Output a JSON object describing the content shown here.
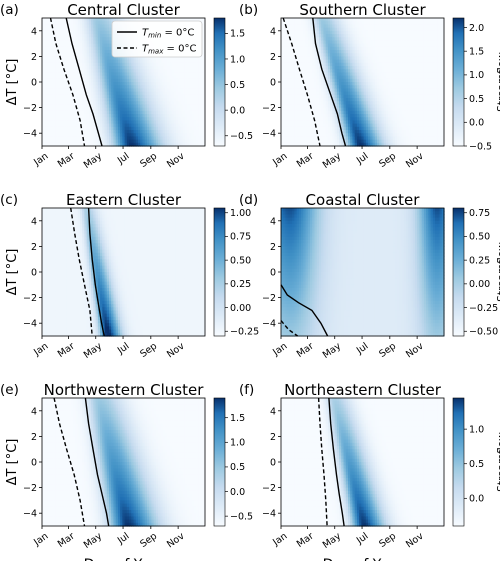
{
  "chart_data": [
    {
      "panel": "(a)",
      "title": "Central Cluster",
      "type": "heatmap",
      "ylabel": "ΔT [°C]",
      "xlabel": "",
      "xticks": [
        "Jan",
        "Mar",
        "May",
        "Jul",
        "Sep",
        "Nov"
      ],
      "xlim": [
        1,
        365
      ],
      "ylim": [
        -5,
        5
      ],
      "yticks": [
        "4",
        "2",
        "0",
        "−2",
        "−4"
      ],
      "colorbar": {
        "ticks": [
          "1.5",
          "1.0",
          "0.5",
          "0.0",
          "−0.5"
        ],
        "tick_values": [
          1.5,
          1.0,
          0.5,
          0.0,
          -0.5
        ],
        "range": [
          -0.7,
          1.8
        ],
        "label": ""
      },
      "peak": {
        "x_at_dT5": 125,
        "x_at_dTm5": 200,
        "width": 32,
        "smin": 0.45,
        "smax": 1.0
      },
      "second_peak": null,
      "background": 0.0,
      "legend": [
        "T_min = 0°C",
        "T_max = 0°C"
      ],
      "tmin_line": {
        "x": [
          55,
          68,
          84,
          100,
          115,
          127,
          135
        ],
        "y": [
          5,
          3,
          1,
          -1,
          -2.5,
          -4,
          -5
        ]
      },
      "tmax_line": {
        "x": [
          20,
          32,
          50,
          70,
          86,
          96
        ],
        "y": [
          5,
          3,
          1,
          -1,
          -3,
          -5
        ]
      }
    },
    {
      "panel": "(b)",
      "title": "Southern Cluster",
      "type": "heatmap",
      "ylabel": "",
      "xlabel": "",
      "xticks": [
        "Jan",
        "Mar",
        "May",
        "Jul",
        "Sep",
        "Nov"
      ],
      "xlim": [
        1,
        365
      ],
      "ylim": [
        -5,
        5
      ],
      "yticks": [
        "4",
        "2",
        "0",
        "−2",
        "−4"
      ],
      "colorbar": {
        "ticks": [
          "2.0",
          "1.5",
          "1.0",
          "0.5",
          "0.0",
          "−0.5"
        ],
        "tick_values": [
          2.0,
          1.5,
          1.0,
          0.5,
          0.0,
          -0.5
        ],
        "range": [
          -0.5,
          2.2
        ],
        "label": "Streamflow"
      },
      "peak": {
        "x_at_dT5": 92,
        "x_at_dTm5": 178,
        "width": 24,
        "smin": 0.45,
        "smax": 1.0
      },
      "second_peak": null,
      "background": 0.0,
      "tmin_line": {
        "x": [
          72,
          78,
          92,
          112,
          127,
          137,
          145
        ],
        "y": [
          5,
          3,
          1,
          -1,
          -2.5,
          -4,
          -5
        ]
      },
      "tmax_line": {
        "x": [
          6,
          25,
          42,
          60,
          76,
          88
        ],
        "y": [
          5,
          3,
          1,
          -1,
          -3,
          -5
        ]
      }
    },
    {
      "panel": "(c)",
      "title": "Eastern Cluster",
      "type": "heatmap",
      "ylabel": "ΔT [°C]",
      "xlabel": "",
      "xticks": [
        "Jan",
        "Mar",
        "May",
        "Jul",
        "Sep",
        "Nov"
      ],
      "xlim": [
        1,
        365
      ],
      "ylim": [
        -5,
        5
      ],
      "yticks": [
        "4",
        "2",
        "0",
        "−2",
        "−4"
      ],
      "colorbar": {
        "ticks": [
          "1.00",
          "0.75",
          "0.50",
          "0.25",
          "0.00",
          "−0.25"
        ],
        "tick_values": [
          1.0,
          0.75,
          0.5,
          0.25,
          0.0,
          -0.25
        ],
        "range": [
          -0.3,
          1.05
        ],
        "label": ""
      },
      "peak": {
        "x_at_dT5": 100,
        "x_at_dTm5": 148,
        "width": 14,
        "smin": 0.35,
        "smax": 1.0
      },
      "second_peak": null,
      "background": 0.05,
      "tmin_line": {
        "x": [
          105,
          108,
          113,
          120,
          127,
          134,
          140
        ],
        "y": [
          5,
          3,
          1,
          -1,
          -2.5,
          -4,
          -5
        ]
      },
      "tmax_line": {
        "x": [
          65,
          74,
          84,
          96,
          108,
          113
        ],
        "y": [
          5,
          3,
          1,
          -1,
          -3,
          -5
        ]
      }
    },
    {
      "panel": "(d)",
      "title": "Coastal Cluster",
      "type": "heatmap",
      "ylabel": "",
      "xlabel": "",
      "xticks": [
        "Jan",
        "Mar",
        "May",
        "Jul",
        "Sep",
        "Nov"
      ],
      "xlim": [
        1,
        365
      ],
      "ylim": [
        -5,
        5
      ],
      "yticks": [
        "4",
        "2",
        "0",
        "−2",
        "−4"
      ],
      "colorbar": {
        "ticks": [
          "0.75",
          "0.50",
          "0.25",
          "0.00",
          "−0.25",
          "−0.50"
        ],
        "tick_values": [
          0.75,
          0.5,
          0.25,
          0.0,
          -0.25,
          -0.5
        ],
        "range": [
          -0.55,
          0.8
        ],
        "label": "Streamflow"
      },
      "peak": null,
      "second_peak": null,
      "background": 0.05,
      "seasonal": "winter",
      "tmin_line": {
        "x": [
          1,
          15,
          40,
          70,
          90,
          105
        ],
        "y": [
          -1,
          -1.8,
          -2.4,
          -3,
          -4,
          -5
        ]
      },
      "tmax_line": {
        "x": [
          1,
          18,
          38
        ],
        "y": [
          -3.8,
          -4.5,
          -5
        ]
      }
    },
    {
      "panel": "(e)",
      "title": "Northwestern Cluster",
      "type": "heatmap",
      "ylabel": "ΔT [°C]",
      "xlabel": "Day of Year",
      "xticks": [
        "Jan",
        "Mar",
        "May",
        "Jul",
        "Sep",
        "Nov"
      ],
      "xlim": [
        1,
        365
      ],
      "ylim": [
        -5,
        5
      ],
      "yticks": [
        "4",
        "2",
        "0",
        "−2",
        "−4"
      ],
      "colorbar": {
        "ticks": [
          "1.5",
          "1.0",
          "0.5",
          "0.0",
          "−0.5"
        ],
        "tick_values": [
          1.5,
          1.0,
          0.5,
          0.0,
          -0.5
        ],
        "range": [
          -0.7,
          1.9
        ],
        "label": ""
      },
      "peak": {
        "x_at_dT5": 128,
        "x_at_dTm5": 192,
        "width": 32,
        "smin": 0.45,
        "smax": 1.0
      },
      "second_peak": null,
      "background": 0.0,
      "tmin_line": {
        "x": [
          98,
          105,
          115,
          125,
          135,
          145,
          150
        ],
        "y": [
          5,
          3,
          1,
          -1,
          -2.5,
          -4,
          -5
        ]
      },
      "tmax_line": {
        "x": [
          28,
          40,
          56,
          73,
          86,
          96
        ],
        "y": [
          5,
          3,
          1,
          -1,
          -3,
          -5
        ]
      }
    },
    {
      "panel": "(f)",
      "title": "Northeastern Cluster",
      "type": "heatmap",
      "ylabel": "",
      "xlabel": "Day of Year",
      "xticks": [
        "Jan",
        "Mar",
        "May",
        "Jul",
        "Sep",
        "Nov"
      ],
      "xlim": [
        1,
        365
      ],
      "ylim": [
        -5,
        5
      ],
      "yticks": [
        "4",
        "2",
        "0",
        "−2",
        "−4"
      ],
      "colorbar": {
        "ticks": [
          "1.0",
          "0.5",
          "0.0"
        ],
        "tick_values": [
          1.0,
          0.5,
          0.0
        ],
        "range": [
          -0.4,
          1.45
        ],
        "label": "Streamflow"
      },
      "peak": {
        "x_at_dT5": 120,
        "x_at_dTm5": 186,
        "width": 22,
        "smin": 0.4,
        "smax": 1.0
      },
      "second_peak": null,
      "background": 0.0,
      "tmin_line": {
        "x": [
          108,
          112,
          118,
          125,
          131,
          138,
          142
        ],
        "y": [
          5,
          3,
          1,
          -1,
          -2.5,
          -4,
          -5
        ]
      },
      "tmax_line": {
        "x": [
          85,
          88,
          92,
          97,
          101,
          104
        ],
        "y": [
          5,
          3,
          1,
          -1,
          -3,
          -5
        ]
      }
    }
  ],
  "legend": {
    "tmin_label": "T",
    "tmin_sub": "min",
    "tmin_rest": " = 0°C",
    "tmax_label": "T",
    "tmax_sub": "max",
    "tmax_rest": " = 0°C"
  }
}
